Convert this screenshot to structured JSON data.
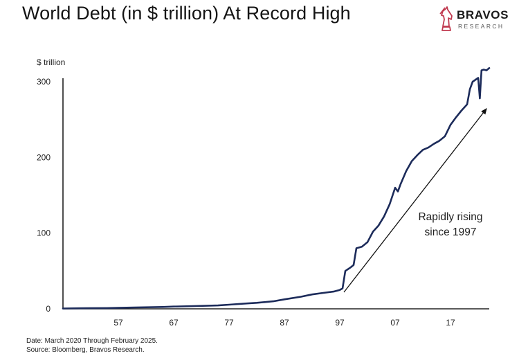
{
  "title": "World Debt (in $ trillion) At Record High",
  "logo": {
    "name": "BRAVOS",
    "subtitle": "RESEARCH",
    "mark_icon": "chess-knight-icon",
    "mark_color": "#c0394f"
  },
  "footer": {
    "date_note": "Date: March 2020 Through February 2025.",
    "source_note": "Source: Bloomberg, Bravos Research."
  },
  "chart_data": {
    "type": "line",
    "ylabel": "$ trillion",
    "xlabel": "",
    "ylim": [
      0,
      300
    ],
    "xlim": [
      1947,
      2024
    ],
    "yticks": [
      0,
      100,
      200,
      300
    ],
    "xticks": [
      1957,
      1967,
      1977,
      1987,
      1997,
      2007,
      2017
    ],
    "xtick_labels": [
      "57",
      "67",
      "77",
      "87",
      "97",
      "07",
      "17"
    ],
    "grid": false,
    "line_color": "#1c2b5a",
    "annotation": {
      "text_lines": [
        "Rapidly rising",
        "since 1997"
      ],
      "arrow": true
    },
    "series": [
      {
        "name": "",
        "x": [
          1947,
          1950,
          1955,
          1957,
          1960,
          1965,
          1967,
          1970,
          1975,
          1977,
          1980,
          1982,
          1985,
          1987,
          1990,
          1992,
          1994,
          1996,
          1997,
          1997.5,
          1998,
          1999,
          1999.5,
          2000,
          2001,
          2002,
          2003,
          2004,
          2005,
          2006,
          2007,
          2007.5,
          2008,
          2009,
          2010,
          2011,
          2012,
          2013,
          2014,
          2015,
          2016,
          2017,
          2018,
          2019,
          2020,
          2020.5,
          2021,
          2022,
          2022.3,
          2022.6,
          2023,
          2023.5,
          2024
        ],
        "y": [
          0.5,
          0.7,
          1,
          1.3,
          1.8,
          2.5,
          3,
          3.5,
          4.5,
          5.5,
          7,
          8,
          10,
          12.5,
          16,
          19,
          21,
          23,
          25,
          27,
          50,
          55,
          58,
          80,
          82,
          88,
          102,
          110,
          122,
          138,
          160,
          155,
          165,
          182,
          195,
          203,
          210,
          213,
          218,
          222,
          228,
          243,
          253,
          262,
          270,
          290,
          300,
          305,
          278,
          315,
          316,
          315,
          318
        ]
      }
    ]
  }
}
